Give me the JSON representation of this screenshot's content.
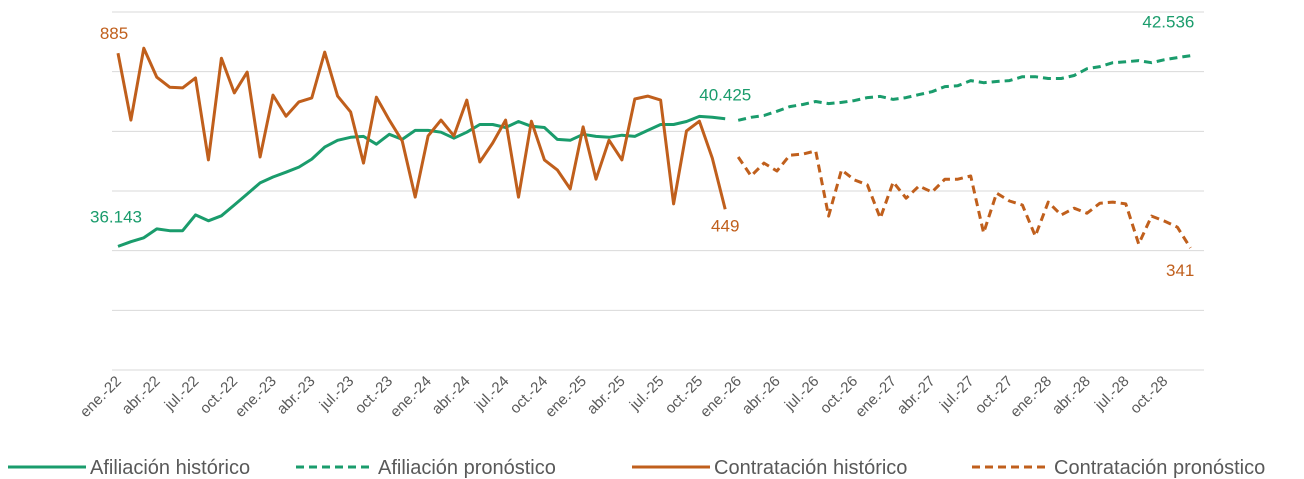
{
  "chart_data": {
    "type": "line",
    "categories": [
      "ene.-22",
      null,
      null,
      "abr.-22",
      null,
      null,
      "jul.-22",
      null,
      null,
      "oct.-22",
      null,
      null,
      "ene.-23",
      null,
      null,
      "abr.-23",
      null,
      null,
      "jul.-23",
      null,
      null,
      "oct.-23",
      null,
      null,
      "ene.-24",
      null,
      null,
      "abr.-24",
      null,
      null,
      "jul.-24",
      null,
      null,
      "oct.-24",
      null,
      null,
      "ene.-25",
      null,
      null,
      "abr.-25",
      null,
      null,
      "jul.-25",
      null,
      null,
      "oct.-25",
      null,
      null,
      "ene.-26",
      null,
      null,
      "abr.-26",
      null,
      null,
      "jul.-26",
      null,
      null,
      "oct.-26",
      null,
      null,
      "ene.-27",
      null,
      null,
      "abr.-27",
      null,
      null,
      "jul.-27",
      null,
      null,
      "oct.-27",
      null,
      null,
      "ene.-28",
      null,
      null,
      "abr.-28",
      null,
      null,
      "jul.-28",
      null,
      null,
      "oct.-28",
      null,
      null
    ],
    "ylim": [
      32000,
      44000
    ],
    "yticks": [
      32000,
      34000,
      36000,
      38000,
      40000,
      42000,
      44000
    ],
    "y2lim": [
      0,
      1000
    ],
    "grid": true,
    "legend": "bottom",
    "series": [
      {
        "name": "Afiliación histórico",
        "color": "#1a9c6c",
        "style": "solid",
        "values": [
          36143,
          36300,
          36430,
          36730,
          36670,
          36670,
          37200,
          37000,
          37170,
          37530,
          37900,
          38270,
          38470,
          38630,
          38800,
          39070,
          39470,
          39700,
          39800,
          39830,
          39570,
          39900,
          39730,
          40030,
          40030,
          39970,
          39770,
          39970,
          40230,
          40230,
          40130,
          40330,
          40170,
          40130,
          39730,
          39700,
          39900,
          39830,
          39800,
          39870,
          39830,
          40030,
          40230,
          40230,
          40330,
          40500,
          40470,
          40425,
          null,
          null,
          null,
          null,
          null,
          null,
          null,
          null,
          null,
          null,
          null,
          null,
          null,
          null,
          null,
          null,
          null,
          null,
          null,
          null,
          null,
          null,
          null,
          null,
          null,
          null,
          null,
          null,
          null,
          null,
          null,
          null,
          null,
          null,
          null,
          null
        ],
        "value_labels": [
          "36.143",
          null,
          null,
          null,
          null,
          null,
          null,
          null,
          null,
          null,
          null,
          null,
          null,
          null,
          null,
          null,
          null,
          null,
          null,
          null,
          null,
          null,
          null,
          null,
          null,
          null,
          null,
          null,
          null,
          null,
          null,
          null,
          null,
          null,
          null,
          null,
          null,
          null,
          null,
          null,
          null,
          null,
          null,
          null,
          null,
          null,
          null,
          "40.425",
          null,
          null,
          null,
          null,
          null,
          null,
          null,
          null,
          null,
          null,
          null,
          null,
          null,
          null,
          null,
          null,
          null,
          null,
          null,
          null,
          null,
          null,
          null,
          null,
          null,
          null,
          null,
          null,
          null,
          null,
          null,
          null,
          null,
          null,
          null,
          null
        ]
      },
      {
        "name": "Afiliación pronóstico",
        "color": "#1a9c6c",
        "style": "dashed",
        "values": [
          null,
          null,
          null,
          null,
          null,
          null,
          null,
          null,
          null,
          null,
          null,
          null,
          null,
          null,
          null,
          null,
          null,
          null,
          null,
          null,
          null,
          null,
          null,
          null,
          null,
          null,
          null,
          null,
          null,
          null,
          null,
          null,
          null,
          null,
          null,
          null,
          null,
          null,
          null,
          null,
          null,
          null,
          null,
          null,
          null,
          null,
          null,
          null,
          40370,
          40470,
          40530,
          40670,
          40830,
          40900,
          41000,
          40930,
          40970,
          41030,
          41130,
          41170,
          41070,
          41130,
          41230,
          41330,
          41500,
          41530,
          41700,
          41630,
          41670,
          41700,
          41830,
          41830,
          41770,
          41770,
          41870,
          42100,
          42170,
          42300,
          42330,
          42370,
          42300,
          42400,
          42470,
          42536
        ],
        "value_labels": [
          null,
          null,
          null,
          null,
          null,
          null,
          null,
          null,
          null,
          null,
          null,
          null,
          null,
          null,
          null,
          null,
          null,
          null,
          null,
          null,
          null,
          null,
          null,
          null,
          null,
          null,
          null,
          null,
          null,
          null,
          null,
          null,
          null,
          null,
          null,
          null,
          null,
          null,
          null,
          null,
          null,
          null,
          null,
          null,
          null,
          null,
          null,
          null,
          null,
          null,
          null,
          null,
          null,
          null,
          null,
          null,
          null,
          null,
          null,
          null,
          null,
          null,
          null,
          null,
          null,
          null,
          null,
          null,
          null,
          null,
          null,
          null,
          null,
          null,
          null,
          null,
          null,
          null,
          null,
          null,
          null,
          null,
          null,
          "42.536"
        ]
      },
      {
        "name": "Contratación histórico",
        "color": "#c05f1c",
        "style": "solid",
        "axis": "y2",
        "values": [
          885,
          698,
          899,
          818,
          790,
          788,
          816,
          587,
          871,
          774,
          832,
          595,
          768,
          709,
          749,
          760,
          888,
          765,
          721,
          578,
          762,
          698,
          640,
          483,
          654,
          698,
          654,
          754,
          581,
          634,
          698,
          483,
          695,
          587,
          559,
          506,
          679,
          533,
          642,
          587,
          757,
          765,
          754,
          464,
          668,
          695,
          592,
          449,
          null,
          null,
          null,
          null,
          null,
          null,
          null,
          null,
          null,
          null,
          null,
          null,
          null,
          null,
          null,
          null,
          null,
          null,
          null,
          null,
          null,
          null,
          null,
          null,
          null,
          null,
          null,
          null,
          null,
          null,
          null,
          null,
          null,
          null,
          null,
          null
        ],
        "value_labels": [
          "885",
          null,
          null,
          null,
          null,
          null,
          null,
          null,
          null,
          null,
          null,
          null,
          null,
          null,
          null,
          null,
          null,
          null,
          null,
          null,
          null,
          null,
          null,
          null,
          null,
          null,
          null,
          null,
          null,
          null,
          null,
          null,
          null,
          null,
          null,
          null,
          null,
          null,
          null,
          null,
          null,
          null,
          null,
          null,
          null,
          null,
          null,
          "449",
          null,
          null,
          null,
          null,
          null,
          null,
          null,
          null,
          null,
          null,
          null,
          null,
          null,
          null,
          null,
          null,
          null,
          null,
          null,
          null,
          null,
          null,
          null,
          null,
          null,
          null,
          null,
          null,
          null,
          null,
          null,
          null,
          null,
          null,
          null,
          null
        ]
      },
      {
        "name": "Contratación pronóstico",
        "color": "#c05f1c",
        "style": "dashed",
        "axis": "y2",
        "values": [
          null,
          null,
          null,
          null,
          null,
          null,
          null,
          null,
          null,
          null,
          null,
          null,
          null,
          null,
          null,
          null,
          null,
          null,
          null,
          null,
          null,
          null,
          null,
          null,
          null,
          null,
          null,
          null,
          null,
          null,
          null,
          null,
          null,
          null,
          null,
          null,
          null,
          null,
          null,
          null,
          null,
          null,
          null,
          null,
          null,
          null,
          null,
          null,
          595,
          542,
          578,
          556,
          600,
          603,
          612,
          430,
          559,
          531,
          517,
          424,
          525,
          480,
          514,
          497,
          533,
          533,
          542,
          383,
          494,
          472,
          461,
          374,
          469,
          433,
          452,
          438,
          466,
          469,
          464,
          352,
          430,
          416,
          399,
          341
        ],
        "value_labels": [
          null,
          null,
          null,
          null,
          null,
          null,
          null,
          null,
          null,
          null,
          null,
          null,
          null,
          null,
          null,
          null,
          null,
          null,
          null,
          null,
          null,
          null,
          null,
          null,
          null,
          null,
          null,
          null,
          null,
          null,
          null,
          null,
          null,
          null,
          null,
          null,
          null,
          null,
          null,
          null,
          null,
          null,
          null,
          null,
          null,
          null,
          null,
          null,
          null,
          null,
          null,
          null,
          null,
          null,
          null,
          null,
          null,
          null,
          null,
          null,
          null,
          null,
          null,
          null,
          null,
          null,
          null,
          null,
          null,
          null,
          null,
          null,
          null,
          null,
          null,
          null,
          null,
          null,
          null,
          null,
          null,
          null,
          null,
          "341"
        ]
      }
    ]
  }
}
